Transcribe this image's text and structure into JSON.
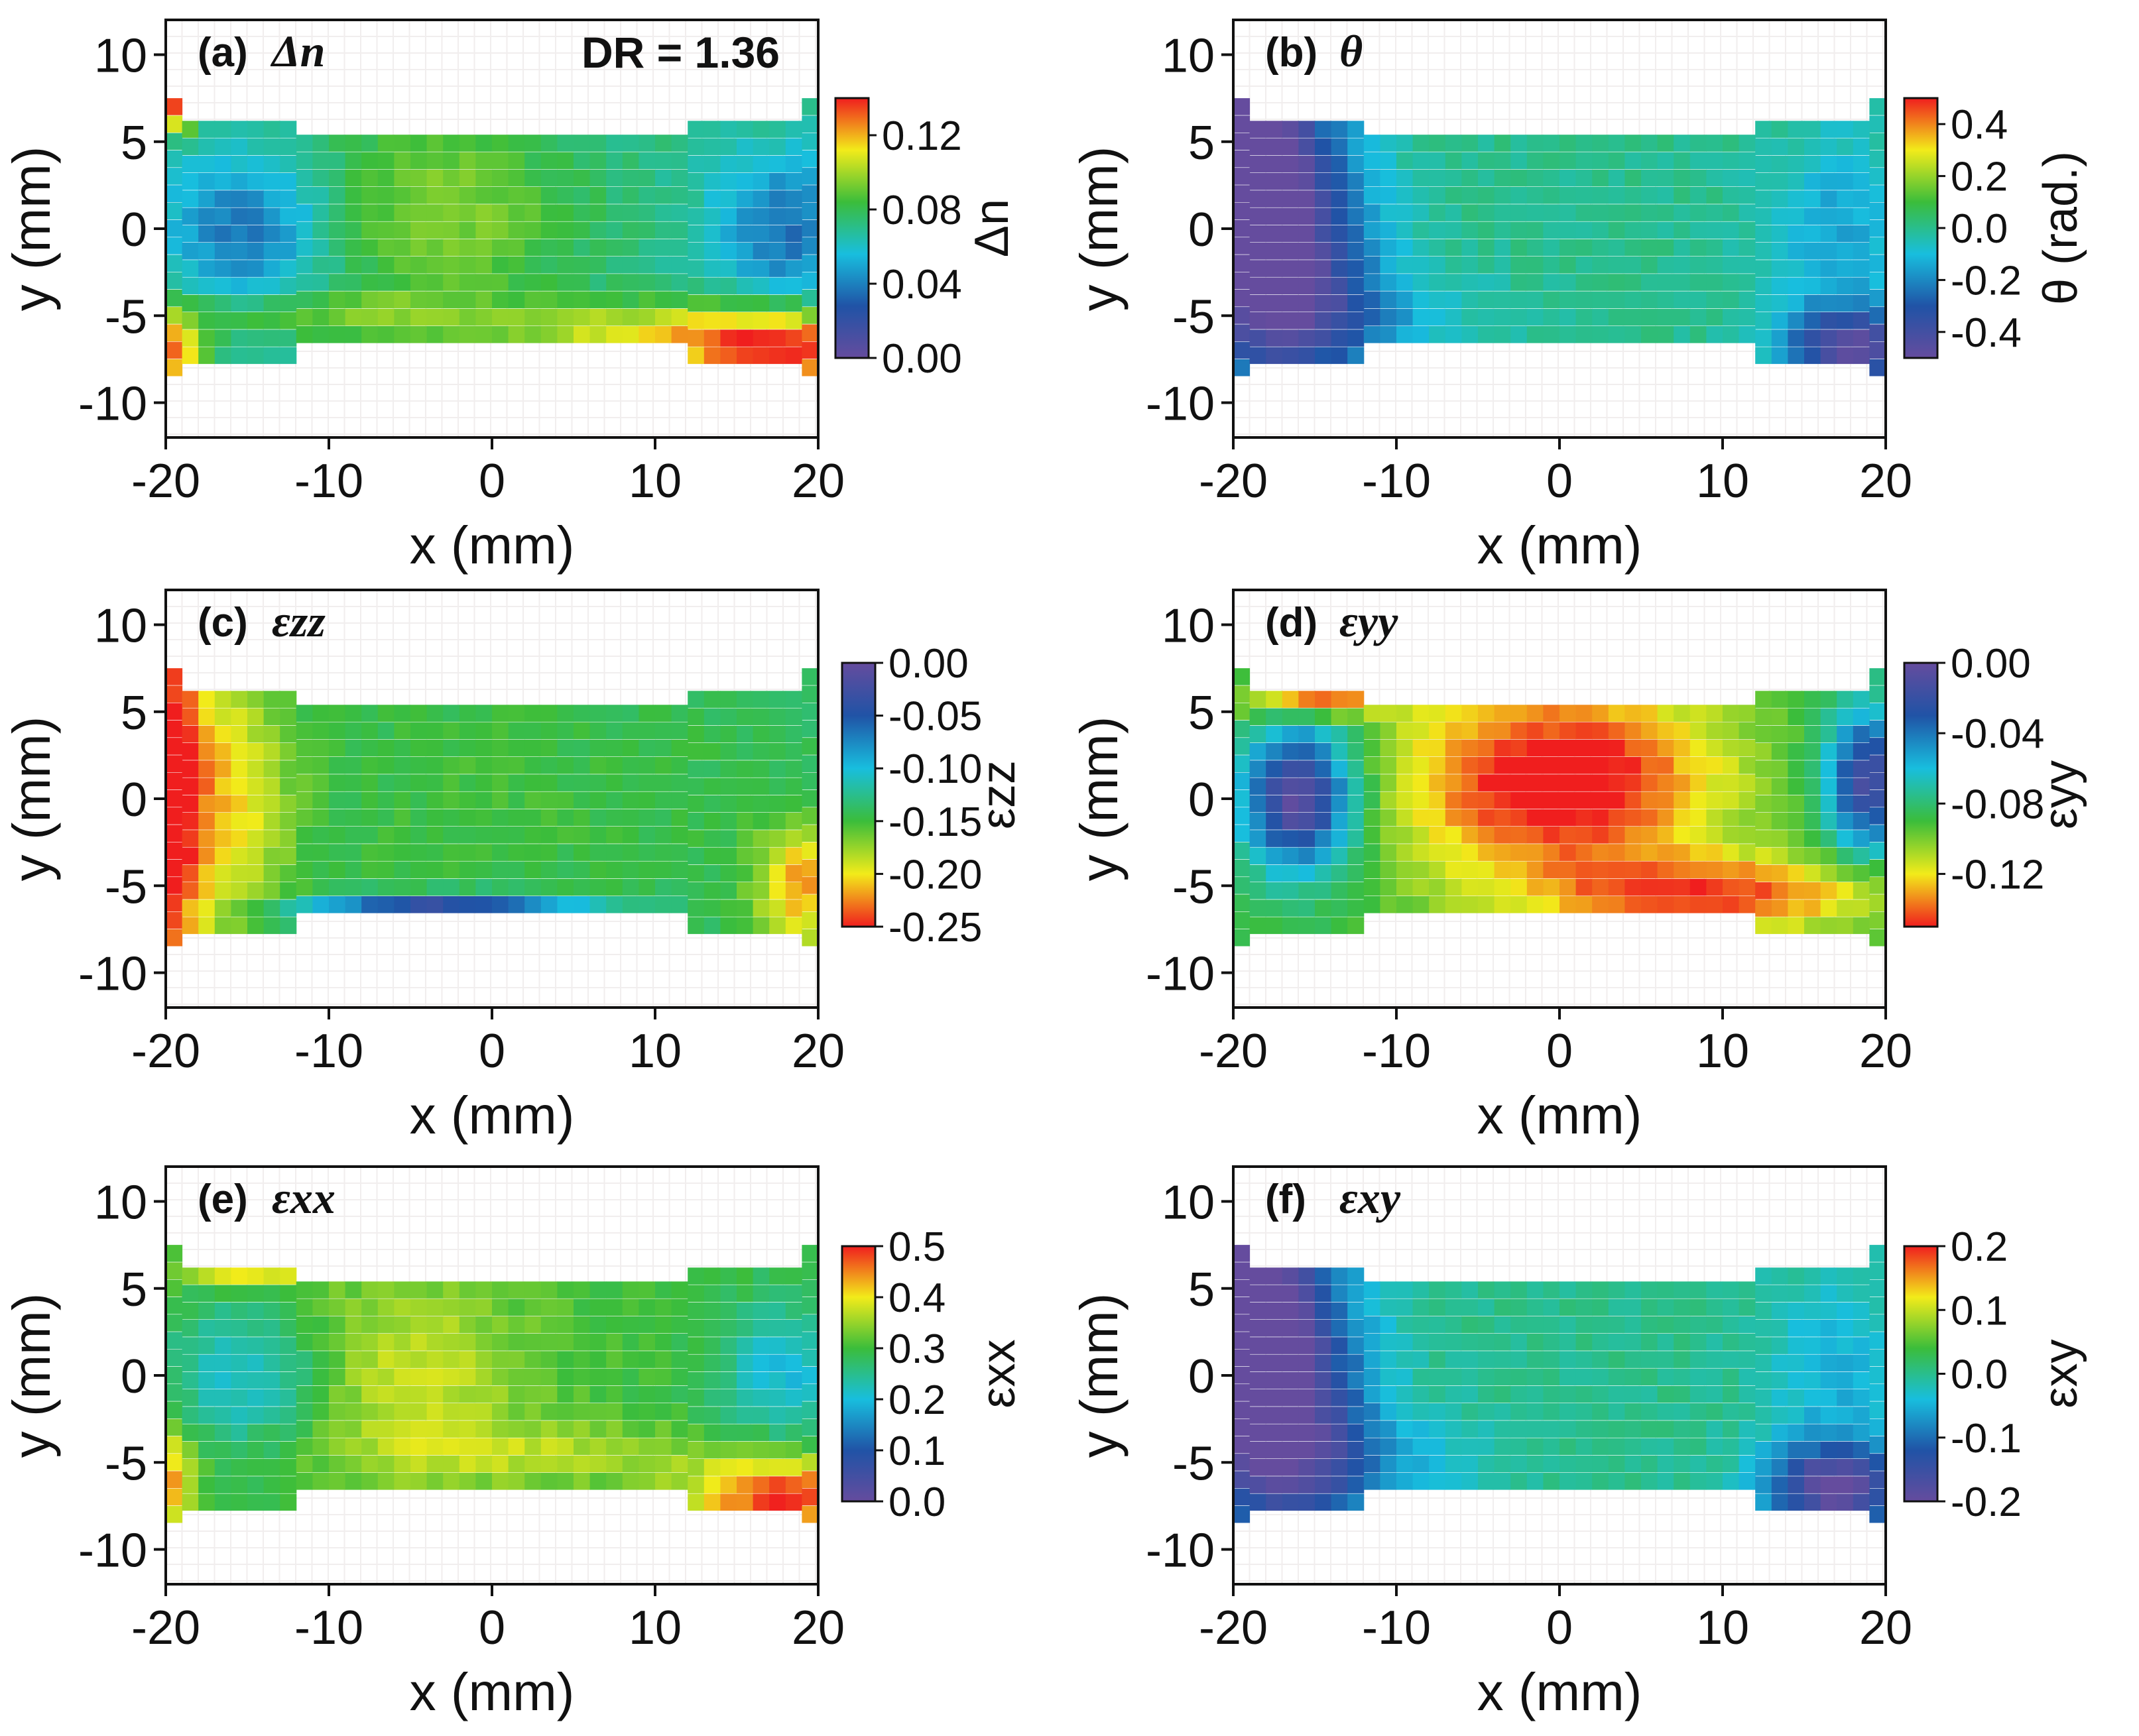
{
  "chart_data": [
    {
      "type": "heatmap",
      "panel_label": "(a)",
      "title": "Δn",
      "xlabel": "x (mm)",
      "ylabel": "y (mm)",
      "xlim": [
        -20,
        20
      ],
      "ylim": [
        -12,
        12
      ],
      "x_ticks": [
        -20,
        -10,
        0,
        10,
        20
      ],
      "y_ticks": [
        10,
        5,
        0,
        -5,
        -10
      ],
      "annotation": "DR = 1.36",
      "colorbar": {
        "label": "Δn",
        "range": [
          0.0,
          0.14
        ],
        "ticks": [
          "0.12",
          "0.08",
          "0.04",
          "0.00"
        ],
        "colors": [
          "#f01e1e",
          "#f2eb1a",
          "#3bbd3b",
          "#18bede",
          "#2053a6",
          "#654c9e"
        ]
      },
      "field": {
        "base": 0.07,
        "bumps": [
          {
            "x": -15,
            "y": 0,
            "amp": -0.035,
            "sx": 3.5,
            "sy": 3
          },
          {
            "x": 18,
            "y": 0,
            "amp": -0.035,
            "sx": 3,
            "sy": 3
          },
          {
            "x": -3,
            "y": 1,
            "amp": 0.025,
            "sx": 6,
            "sy": 4
          },
          {
            "x": 18,
            "y": -7,
            "amp": 0.07,
            "sx": 5,
            "sy": 1.6
          },
          {
            "x": -19.5,
            "y": 7,
            "amp": 0.07,
            "sx": 1,
            "sy": 1
          },
          {
            "x": -19.5,
            "y": -7,
            "amp": 0.06,
            "sx": 1.2,
            "sy": 1.5
          },
          {
            "x": 8,
            "y": -6,
            "amp": 0.03,
            "sx": 6,
            "sy": 1.2
          },
          {
            "x": -10,
            "y": -5,
            "amp": 0.02,
            "sx": 8,
            "sy": 1
          }
        ]
      }
    },
    {
      "type": "heatmap",
      "panel_label": "(b)",
      "title": "θ",
      "xlabel": "x (mm)",
      "ylabel": "y (mm)",
      "xlim": [
        -20,
        20
      ],
      "ylim": [
        -12,
        12
      ],
      "x_ticks": [
        -20,
        -10,
        0,
        10,
        20
      ],
      "y_ticks": [
        10,
        5,
        0,
        -5,
        -10
      ],
      "colorbar": {
        "label": "θ (rad.)",
        "range": [
          -0.5,
          0.5
        ],
        "ticks": [
          "0.4",
          "0.2",
          "0.0",
          "-0.2",
          "-0.4"
        ],
        "colors": [
          "#f01e1e",
          "#f2eb1a",
          "#3bbd3b",
          "#18bede",
          "#2053a6",
          "#654c9e"
        ]
      },
      "field": {
        "base": 0.0,
        "bumps": [
          {
            "x": -19,
            "y": 2,
            "amp": -0.7,
            "sx": 2.5,
            "sy": 6
          },
          {
            "x": -15,
            "y": -2,
            "amp": -0.3,
            "sx": 3,
            "sy": 7
          },
          {
            "x": 18,
            "y": -7,
            "amp": -0.45,
            "sx": 3,
            "sy": 1.8
          },
          {
            "x": 17,
            "y": 0,
            "amp": -0.15,
            "sx": 3,
            "sy": 4
          },
          {
            "x": -12,
            "y": -5,
            "amp": -0.12,
            "sx": 5,
            "sy": 2
          }
        ]
      }
    },
    {
      "type": "heatmap",
      "panel_label": "(c)",
      "title": "εzz",
      "xlabel": "x (mm)",
      "ylabel": "y (mm)",
      "xlim": [
        -20,
        20
      ],
      "ylim": [
        -12,
        12
      ],
      "x_ticks": [
        -20,
        -10,
        0,
        10,
        20
      ],
      "y_ticks": [
        10,
        5,
        0,
        -5,
        -10
      ],
      "colorbar": {
        "label": "εzz",
        "range": [
          -0.25,
          0.0
        ],
        "ticks": [
          "0.00",
          "-0.05",
          "-0.10",
          "-0.15",
          "-0.20",
          "-0.25"
        ],
        "colors": [
          "#654c9e",
          "#2053a6",
          "#18bede",
          "#3bbd3b",
          "#f2eb1a",
          "#f01e1e"
        ]
      },
      "field": {
        "base": -0.14,
        "bumps": [
          {
            "x": -20,
            "y": 0,
            "amp": -0.12,
            "sx": 1.6,
            "sy": 9
          },
          {
            "x": -16,
            "y": 0,
            "amp": -0.06,
            "sx": 2.5,
            "sy": 6
          },
          {
            "x": 19,
            "y": -5,
            "amp": -0.08,
            "sx": 2,
            "sy": 2.5
          },
          {
            "x": -3,
            "y": -6.5,
            "amp": 0.13,
            "sx": 6,
            "sy": 0.6
          },
          {
            "x": 0,
            "y": 0,
            "amp": -0.01,
            "sx": 10,
            "sy": 5
          }
        ]
      }
    },
    {
      "type": "heatmap",
      "panel_label": "(d)",
      "title": "εyy",
      "xlabel": "x (mm)",
      "ylabel": "y (mm)",
      "xlim": [
        -20,
        20
      ],
      "ylim": [
        -12,
        12
      ],
      "x_ticks": [
        -20,
        -10,
        0,
        10,
        20
      ],
      "y_ticks": [
        10,
        5,
        0,
        -5,
        -10
      ],
      "colorbar": {
        "label": "εyy",
        "range": [
          -0.15,
          0.0
        ],
        "ticks": [
          "0.00",
          "-0.04",
          "-0.08",
          "-0.12"
        ],
        "colors": [
          "#654c9e",
          "#2053a6",
          "#18bede",
          "#3bbd3b",
          "#f2eb1a",
          "#f01e1e"
        ]
      },
      "field": {
        "base": -0.09,
        "bumps": [
          {
            "x": -16,
            "y": 0,
            "amp": 0.09,
            "sx": 2.5,
            "sy": 3
          },
          {
            "x": 19,
            "y": 1,
            "amp": 0.08,
            "sx": 2,
            "sy": 3
          },
          {
            "x": 0,
            "y": 1,
            "amp": -0.07,
            "sx": 7,
            "sy": 4
          },
          {
            "x": 10,
            "y": -5.5,
            "amp": -0.05,
            "sx": 8,
            "sy": 1.5
          },
          {
            "x": -15,
            "y": 5.5,
            "amp": -0.06,
            "sx": 3,
            "sy": 0.5
          }
        ]
      }
    },
    {
      "type": "heatmap",
      "panel_label": "(e)",
      "title": "εxx",
      "xlabel": "x (mm)",
      "ylabel": "y (mm)",
      "xlim": [
        -20,
        20
      ],
      "ylim": [
        -12,
        12
      ],
      "x_ticks": [
        -20,
        -10,
        0,
        10,
        20
      ],
      "y_ticks": [
        10,
        5,
        0,
        -5,
        -10
      ],
      "colorbar": {
        "label": "εxx",
        "range": [
          0.0,
          0.5
        ],
        "ticks": [
          "0.5",
          "0.4",
          "0.3",
          "0.2",
          "0.1",
          "0.0"
        ],
        "colors": [
          "#f01e1e",
          "#f2eb1a",
          "#3bbd3b",
          "#18bede",
          "#2053a6",
          "#654c9e"
        ]
      },
      "field": {
        "base": 0.3,
        "bumps": [
          {
            "x": -15,
            "y": 0,
            "amp": -0.1,
            "sx": 3.5,
            "sy": 3
          },
          {
            "x": 18,
            "y": 0,
            "amp": -0.1,
            "sx": 3,
            "sy": 3
          },
          {
            "x": -5,
            "y": 0,
            "amp": 0.08,
            "sx": 5,
            "sy": 4
          },
          {
            "x": 18,
            "y": -7,
            "amp": 0.2,
            "sx": 4,
            "sy": 1.6
          },
          {
            "x": -20,
            "y": -6,
            "amp": 0.15,
            "sx": 1.2,
            "sy": 2
          },
          {
            "x": -15,
            "y": 6,
            "amp": 0.12,
            "sx": 3,
            "sy": 0.7
          },
          {
            "x": 3,
            "y": -4.5,
            "amp": 0.06,
            "sx": 8,
            "sy": 1.2
          }
        ]
      }
    },
    {
      "type": "heatmap",
      "panel_label": "(f)",
      "title": "εxy",
      "xlabel": "x (mm)",
      "ylabel": "y (mm)",
      "xlim": [
        -20,
        20
      ],
      "ylim": [
        -12,
        12
      ],
      "x_ticks": [
        -20,
        -10,
        0,
        10,
        20
      ],
      "y_ticks": [
        10,
        5,
        0,
        -5,
        -10
      ],
      "colorbar": {
        "label": "εxy",
        "range": [
          -0.2,
          0.2
        ],
        "ticks": [
          "0.2",
          "0.1",
          "0.0",
          "-0.1",
          "-0.2"
        ],
        "colors": [
          "#f01e1e",
          "#f2eb1a",
          "#3bbd3b",
          "#18bede",
          "#2053a6",
          "#654c9e"
        ]
      },
      "field": {
        "base": 0.0,
        "bumps": [
          {
            "x": -19,
            "y": 2,
            "amp": -0.28,
            "sx": 2.5,
            "sy": 6
          },
          {
            "x": -15,
            "y": -2,
            "amp": -0.12,
            "sx": 3,
            "sy": 7
          },
          {
            "x": 17,
            "y": -6.5,
            "amp": -0.2,
            "sx": 3,
            "sy": 1.8
          },
          {
            "x": 17,
            "y": 0,
            "amp": -0.05,
            "sx": 3,
            "sy": 4
          },
          {
            "x": -12,
            "y": -5,
            "amp": -0.05,
            "sx": 5,
            "sy": 2
          }
        ]
      }
    }
  ]
}
